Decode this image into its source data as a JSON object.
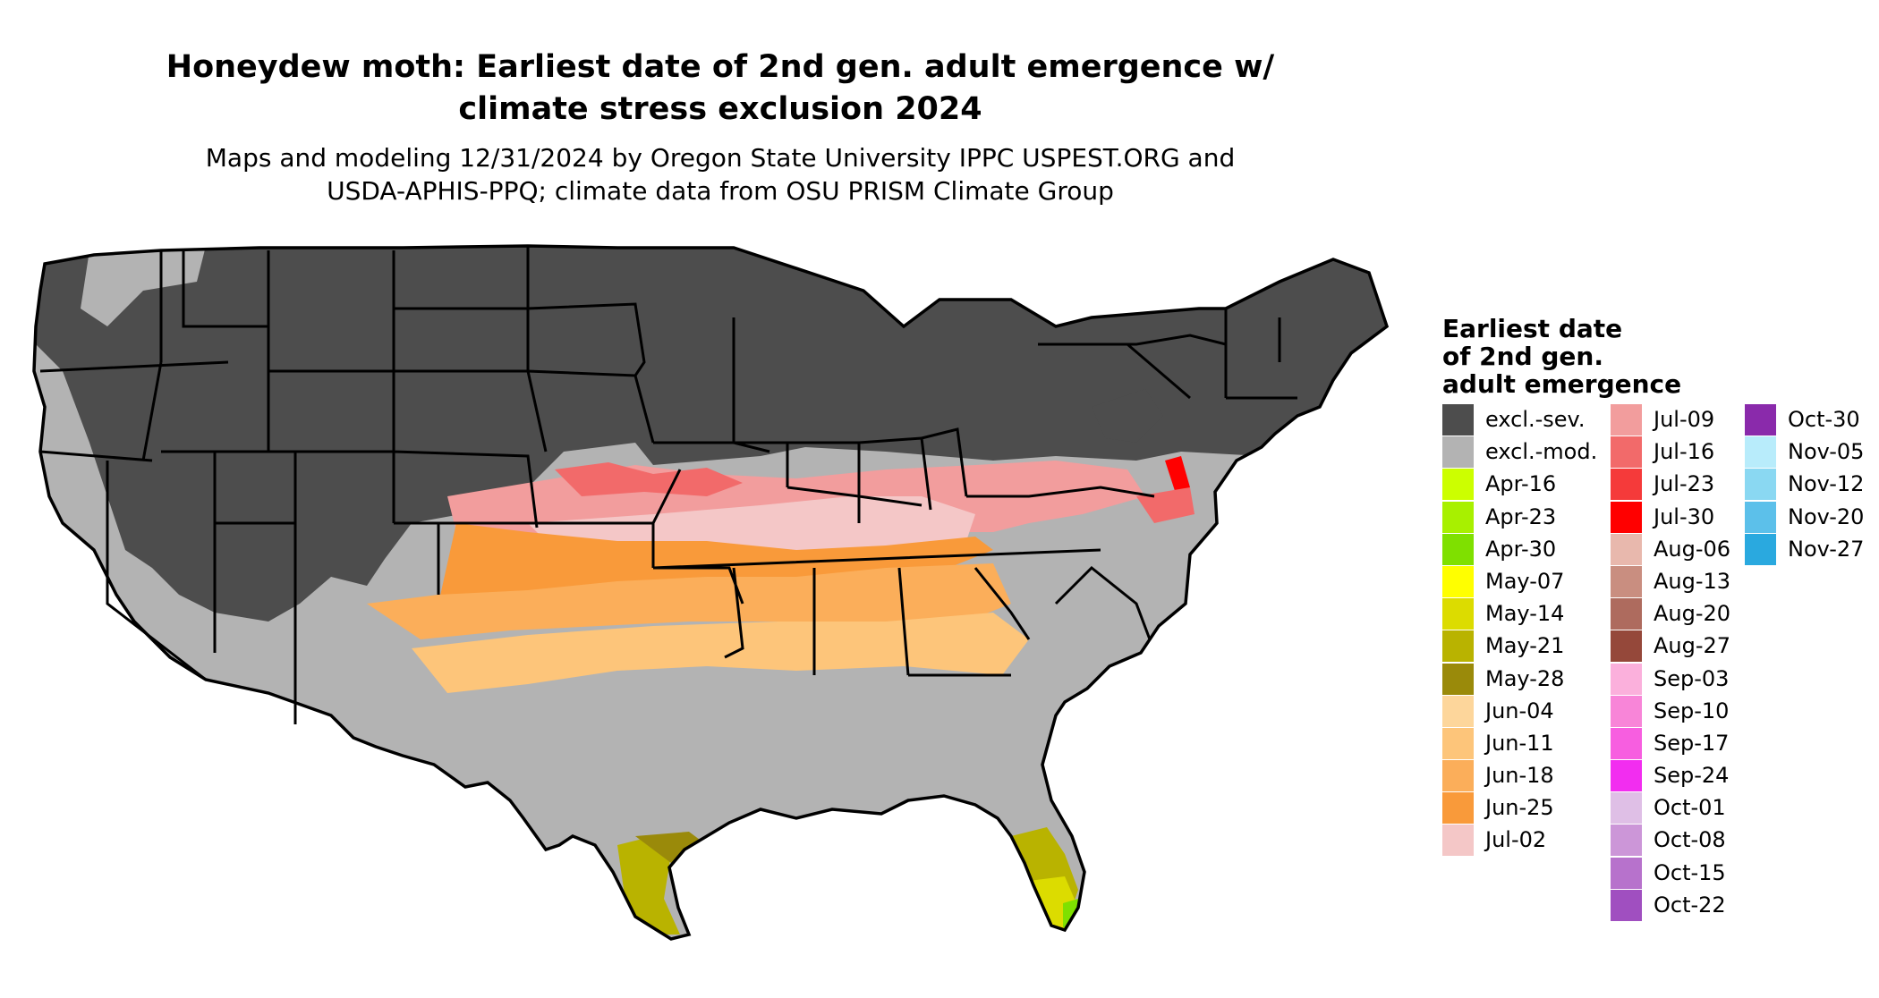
{
  "title_line1": "Honeydew moth: Earliest date of 2nd gen. adult emergence w/",
  "title_line2": "climate stress exclusion 2024",
  "subtitle_line1": "Maps and modeling 12/31/2024 by Oregon State University IPPC USPEST.ORG and",
  "subtitle_line2": "USDA-APHIS-PPQ; climate data from OSU PRISM Climate Group",
  "legend": {
    "title_line1": "Earliest date",
    "title_line2": "of 2nd gen.",
    "title_line3": "adult emergence",
    "items": [
      {
        "label": "excl.-sev.",
        "color": "#4d4d4d"
      },
      {
        "label": "excl.-mod.",
        "color": "#b3b3b3"
      },
      {
        "label": "Apr-16",
        "color": "#ccff00"
      },
      {
        "label": "Apr-23",
        "color": "#a8f000"
      },
      {
        "label": "Apr-30",
        "color": "#7fe000"
      },
      {
        "label": "May-07",
        "color": "#ffff00"
      },
      {
        "label": "May-14",
        "color": "#dcdc00"
      },
      {
        "label": "May-21",
        "color": "#b9b300"
      },
      {
        "label": "May-28",
        "color": "#9a8a0a"
      },
      {
        "label": "Jun-04",
        "color": "#fdd69b"
      },
      {
        "label": "Jun-11",
        "color": "#fdc57a"
      },
      {
        "label": "Jun-18",
        "color": "#fbae5a"
      },
      {
        "label": "Jun-25",
        "color": "#f99a3a"
      },
      {
        "label": "Jul-02",
        "color": "#f4c7c7"
      },
      {
        "label": "Jul-09",
        "color": "#f29d9d"
      },
      {
        "label": "Jul-16",
        "color": "#f26a6a"
      },
      {
        "label": "Jul-23",
        "color": "#f53a3a"
      },
      {
        "label": "Jul-30",
        "color": "#ff0000"
      },
      {
        "label": "Aug-06",
        "color": "#e8b8ad"
      },
      {
        "label": "Aug-13",
        "color": "#c98e80"
      },
      {
        "label": "Aug-20",
        "color": "#ae6b5e"
      },
      {
        "label": "Aug-27",
        "color": "#95483a"
      },
      {
        "label": "Sep-03",
        "color": "#fbb0dc"
      },
      {
        "label": "Sep-10",
        "color": "#f885d8"
      },
      {
        "label": "Sep-17",
        "color": "#f75ee0"
      },
      {
        "label": "Sep-24",
        "color": "#f22df0"
      },
      {
        "label": "Oct-01",
        "color": "#dfbfe6"
      },
      {
        "label": "Oct-08",
        "color": "#cc96d8"
      },
      {
        "label": "Oct-15",
        "color": "#b772cc"
      },
      {
        "label": "Oct-22",
        "color": "#a04fc0"
      },
      {
        "label": "Oct-30",
        "color": "#8a2aab"
      },
      {
        "label": "Nov-05",
        "color": "#b8ecfb"
      },
      {
        "label": "Nov-12",
        "color": "#8ad8f2"
      },
      {
        "label": "Nov-20",
        "color": "#5cc0ea"
      },
      {
        "label": "Nov-27",
        "color": "#2aa9df"
      }
    ]
  }
}
